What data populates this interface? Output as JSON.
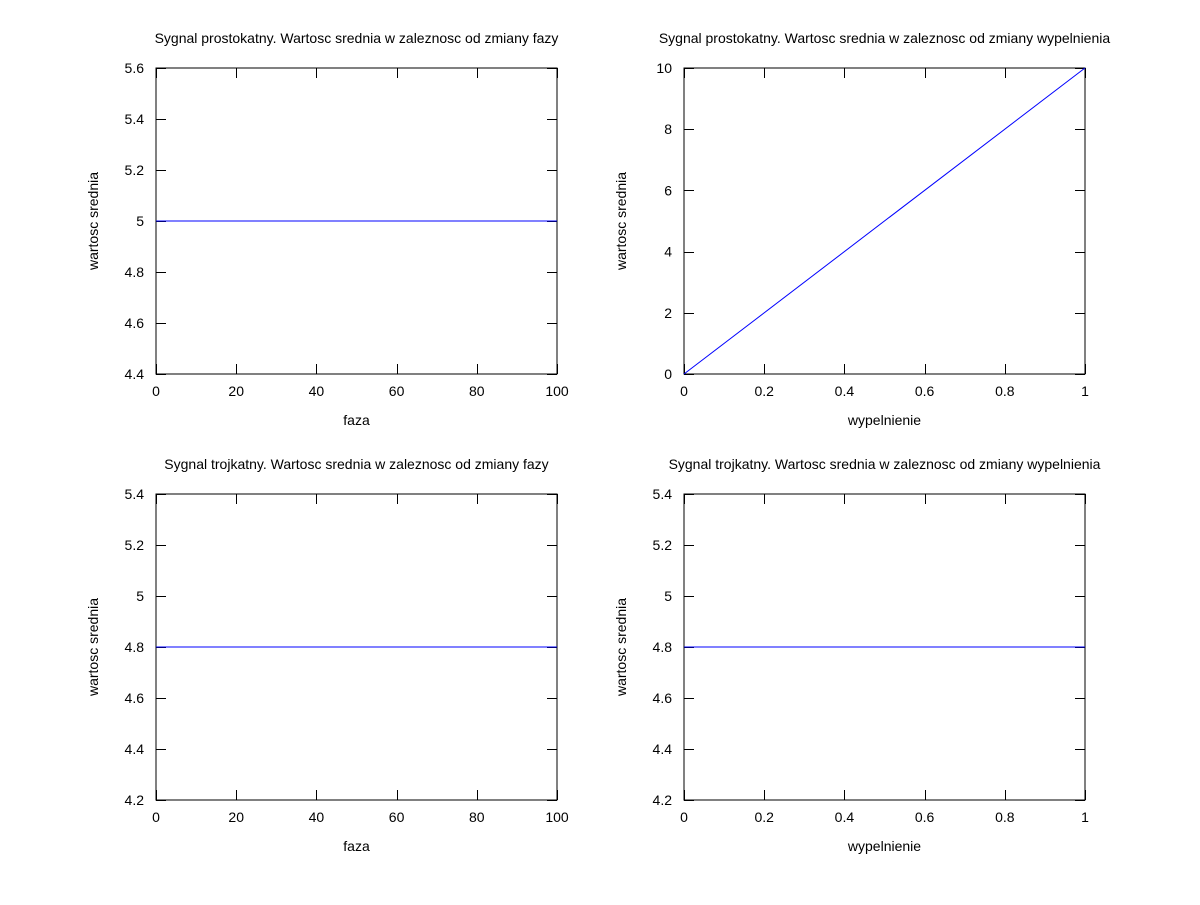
{
  "chart_data": [
    {
      "type": "line",
      "title": "Sygnal prostokatny. Wartosc srednia w zaleznosc od zmiany fazy",
      "xlabel": "faza",
      "ylabel": "wartosc srednia",
      "xlim": [
        0,
        100
      ],
      "ylim": [
        4.4,
        5.6
      ],
      "xticks": [
        0,
        20,
        40,
        60,
        80,
        100
      ],
      "yticks": [
        4.4,
        4.6,
        4.8,
        5,
        5.2,
        5.4,
        5.6
      ],
      "xtick_labels": [
        "0",
        "20",
        "40",
        "60",
        "80",
        "100"
      ],
      "ytick_labels": [
        "4.4",
        "4.6",
        "4.8",
        "5",
        "5.2",
        "5.4",
        "5.6"
      ],
      "grid": false,
      "series": [
        {
          "x": [
            0,
            100
          ],
          "y": [
            5,
            5
          ],
          "color": "#0000ff"
        }
      ]
    },
    {
      "type": "line",
      "title": "Sygnal prostokatny. Wartosc srednia w zaleznosc od zmiany wypelnienia",
      "xlabel": "wypelnienie",
      "ylabel": "wartosc srednia",
      "xlim": [
        0,
        1
      ],
      "ylim": [
        0,
        10
      ],
      "xticks": [
        0,
        0.2,
        0.4,
        0.6,
        0.8,
        1
      ],
      "yticks": [
        0,
        2,
        4,
        6,
        8,
        10
      ],
      "xtick_labels": [
        "0",
        "0.2",
        "0.4",
        "0.6",
        "0.8",
        "1"
      ],
      "ytick_labels": [
        "0",
        "2",
        "4",
        "6",
        "8",
        "10"
      ],
      "grid": false,
      "series": [
        {
          "x": [
            0,
            1
          ],
          "y": [
            0,
            10
          ],
          "color": "#0000ff"
        }
      ]
    },
    {
      "type": "line",
      "title": "Sygnal trojkatny. Wartosc srednia w zaleznosc od zmiany fazy",
      "xlabel": "faza",
      "ylabel": "wartosc srednia",
      "xlim": [
        0,
        100
      ],
      "ylim": [
        4.2,
        5.4
      ],
      "xticks": [
        0,
        20,
        40,
        60,
        80,
        100
      ],
      "yticks": [
        4.2,
        4.4,
        4.6,
        4.8,
        5,
        5.2,
        5.4
      ],
      "xtick_labels": [
        "0",
        "20",
        "40",
        "60",
        "80",
        "100"
      ],
      "ytick_labels": [
        "4.2",
        "4.4",
        "4.6",
        "4.8",
        "5",
        "5.2",
        "5.4"
      ],
      "grid": false,
      "series": [
        {
          "x": [
            0,
            100
          ],
          "y": [
            4.8,
            4.8
          ],
          "color": "#0000ff"
        }
      ]
    },
    {
      "type": "line",
      "title": "Sygnal trojkatny. Wartosc srednia w zaleznosc od zmiany wypelnienia",
      "xlabel": "wypelnienie",
      "ylabel": "wartosc srednia",
      "xlim": [
        0,
        1
      ],
      "ylim": [
        4.2,
        5.4
      ],
      "xticks": [
        0,
        0.2,
        0.4,
        0.6,
        0.8,
        1
      ],
      "yticks": [
        4.2,
        4.4,
        4.6,
        4.8,
        5,
        5.2,
        5.4
      ],
      "xtick_labels": [
        "0",
        "0.2",
        "0.4",
        "0.6",
        "0.8",
        "1"
      ],
      "ytick_labels": [
        "4.2",
        "4.4",
        "4.6",
        "4.8",
        "5",
        "5.2",
        "5.4"
      ],
      "grid": false,
      "series": [
        {
          "x": [
            0,
            1
          ],
          "y": [
            4.8,
            4.8
          ],
          "color": "#0000ff"
        }
      ]
    }
  ]
}
